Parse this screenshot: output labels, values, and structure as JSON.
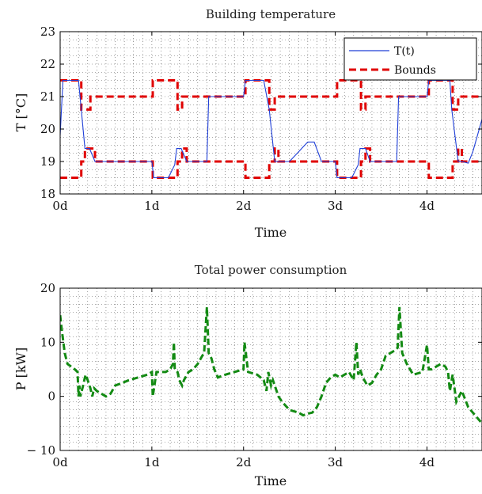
{
  "chart_data": [
    {
      "type": "line",
      "title": "Building temperature",
      "xlabel": "Time",
      "ylabel": "T [°C]",
      "xlim": [
        0,
        4.6
      ],
      "ylim": [
        18,
        23
      ],
      "grid": true,
      "legend_position": "top-right",
      "xtick_labels": [
        "0d",
        "1d",
        "2d",
        "3d",
        "4d"
      ],
      "xticks": [
        0,
        1,
        2,
        3,
        4
      ],
      "yticks": [
        18,
        19,
        20,
        21,
        22,
        23
      ],
      "ytick_labels": [
        "18",
        "19",
        "20",
        "21",
        "22",
        "23"
      ],
      "colors": {
        "temperature": "#1f3fd8",
        "bounds": "#e00000"
      },
      "series": [
        {
          "name": "T(t)",
          "style": "solid",
          "x": [
            0,
            0.03,
            0.08,
            0.2,
            0.27,
            0.28,
            0.32,
            0.38,
            0.5,
            1.0,
            1.02,
            1.18,
            1.25,
            1.27,
            1.32,
            1.38,
            1.6,
            1.62,
            1.75,
            2.0,
            2.02,
            2.1,
            2.22,
            2.28,
            2.34,
            2.4,
            2.5,
            2.6,
            2.7,
            2.77,
            2.85,
            3.0,
            3.02,
            3.18,
            3.25,
            3.27,
            3.33,
            3.38,
            3.67,
            3.69,
            3.8,
            4.0,
            4.02,
            4.15,
            4.25,
            4.27,
            4.34,
            4.38,
            4.45,
            4.5,
            4.6
          ],
          "y": [
            19.8,
            21.5,
            21.5,
            21.5,
            19.4,
            19.4,
            19.4,
            19.0,
            19.0,
            19.0,
            18.5,
            18.5,
            18.9,
            19.4,
            19.4,
            19.0,
            19.0,
            21.0,
            21.0,
            21.0,
            21.5,
            21.5,
            21.5,
            20.6,
            19.0,
            19.0,
            19.0,
            19.3,
            19.6,
            19.6,
            19.0,
            19.0,
            18.5,
            18.5,
            18.9,
            19.4,
            19.4,
            19.0,
            19.0,
            21.0,
            21.0,
            21.0,
            21.5,
            21.5,
            21.5,
            20.6,
            19.0,
            19.0,
            18.95,
            19.3,
            20.3
          ]
        },
        {
          "name": "Bounds",
          "style": "dashed",
          "x": [
            0,
            0.2,
            0.23,
            0.27,
            0.33,
            0.38,
            1.0,
            1.01,
            1.25,
            1.28,
            1.33,
            1.38,
            1.6,
            1.62,
            2.0,
            2.02,
            2.25,
            2.28,
            2.34,
            2.38,
            3.0,
            3.02,
            3.25,
            3.28,
            3.33,
            3.38,
            3.6,
            3.62,
            4.0,
            4.02,
            4.25,
            4.28,
            4.34,
            4.38,
            4.6
          ],
          "y_lower": [
            18.5,
            18.5,
            19.0,
            19.4,
            19.4,
            19.0,
            19.0,
            18.5,
            18.5,
            19.0,
            19.4,
            19.0,
            19.0,
            19.0,
            19.0,
            18.5,
            18.5,
            19.0,
            19.4,
            19.0,
            19.0,
            18.5,
            18.5,
            19.0,
            19.4,
            19.0,
            19.0,
            19.0,
            19.0,
            18.5,
            18.5,
            19.0,
            19.4,
            19.0,
            19.0
          ],
          "y_upper": [
            21.5,
            21.5,
            20.6,
            20.6,
            21.0,
            21.0,
            21.0,
            21.5,
            21.5,
            20.6,
            21.0,
            21.0,
            21.0,
            21.0,
            21.0,
            21.5,
            21.5,
            20.6,
            21.0,
            21.0,
            21.0,
            21.5,
            21.5,
            20.6,
            21.0,
            21.0,
            21.0,
            21.0,
            21.0,
            21.5,
            21.5,
            20.6,
            21.0,
            21.0,
            21.0
          ]
        }
      ]
    },
    {
      "type": "line",
      "title": "Total power consumption",
      "xlabel": "Time",
      "ylabel": "P [kW]",
      "xlim": [
        0,
        4.6
      ],
      "ylim": [
        -10,
        20
      ],
      "grid": true,
      "xtick_labels": [
        "0d",
        "1d",
        "2d",
        "3d",
        "4d"
      ],
      "xticks": [
        0,
        1,
        2,
        3,
        4
      ],
      "yticks": [
        -10,
        0,
        10,
        20
      ],
      "ytick_labels": [
        "− 10",
        "0",
        "10",
        "20"
      ],
      "colors": {
        "power": "#138a13"
      },
      "series": [
        {
          "style": "dashed",
          "x": [
            0,
            0.02,
            0.05,
            0.08,
            0.12,
            0.16,
            0.19,
            0.2,
            0.21,
            0.22,
            0.25,
            0.27,
            0.28,
            0.3,
            0.33,
            0.35,
            0.37,
            0.4,
            0.45,
            0.5,
            0.55,
            0.6,
            0.68,
            0.75,
            0.85,
            0.95,
            1.0,
            1.01,
            1.05,
            1.15,
            1.2,
            1.23,
            1.24,
            1.25,
            1.28,
            1.3,
            1.33,
            1.35,
            1.4,
            1.45,
            1.5,
            1.55,
            1.57,
            1.6,
            1.62,
            1.65,
            1.68,
            1.72,
            1.8,
            1.9,
            2.0,
            2.01,
            2.05,
            2.15,
            2.22,
            2.25,
            2.27,
            2.3,
            2.32,
            2.35,
            2.38,
            2.42,
            2.5,
            2.6,
            2.65,
            2.7,
            2.75,
            2.8,
            2.85,
            2.9,
            2.95,
            3.0,
            3.05,
            3.1,
            3.15,
            3.2,
            3.23,
            3.25,
            3.27,
            3.3,
            3.35,
            3.4,
            3.45,
            3.5,
            3.55,
            3.6,
            3.65,
            3.68,
            3.7,
            3.73,
            3.78,
            3.85,
            3.95,
            4.0,
            4.02,
            4.05,
            4.1,
            4.15,
            4.2,
            4.23,
            4.25,
            4.28,
            4.32,
            4.38,
            4.45,
            4.5,
            4.6
          ],
          "y": [
            15,
            12,
            8,
            6,
            5.5,
            5,
            4.5,
            0,
            2,
            0,
            2,
            3.5,
            4,
            3,
            1.5,
            0,
            1.5,
            1,
            0.5,
            0,
            0.5,
            2,
            2.5,
            3,
            3.5,
            4,
            4.5,
            0,
            4.5,
            4.5,
            5,
            6,
            10,
            5,
            4.5,
            3,
            2,
            3,
            4.5,
            5,
            6,
            7.5,
            8,
            16.5,
            8,
            7,
            5,
            3.5,
            4,
            4.5,
            5,
            10,
            4.5,
            4,
            3,
            1,
            4.5,
            2,
            3,
            1.5,
            0,
            -1,
            -2.5,
            -3,
            -3.5,
            -3.2,
            -3,
            -2,
            0,
            2.5,
            3.5,
            4,
            3.5,
            4,
            4.5,
            3,
            10,
            4,
            5,
            3.5,
            2,
            2.5,
            4,
            5,
            7.5,
            8,
            8.5,
            9,
            16.5,
            8,
            6,
            4,
            4.5,
            9.5,
            5,
            5,
            5.5,
            6,
            5.5,
            4.5,
            1,
            4,
            -1,
            1,
            -2,
            -3,
            -5
          ]
        }
      ]
    }
  ]
}
